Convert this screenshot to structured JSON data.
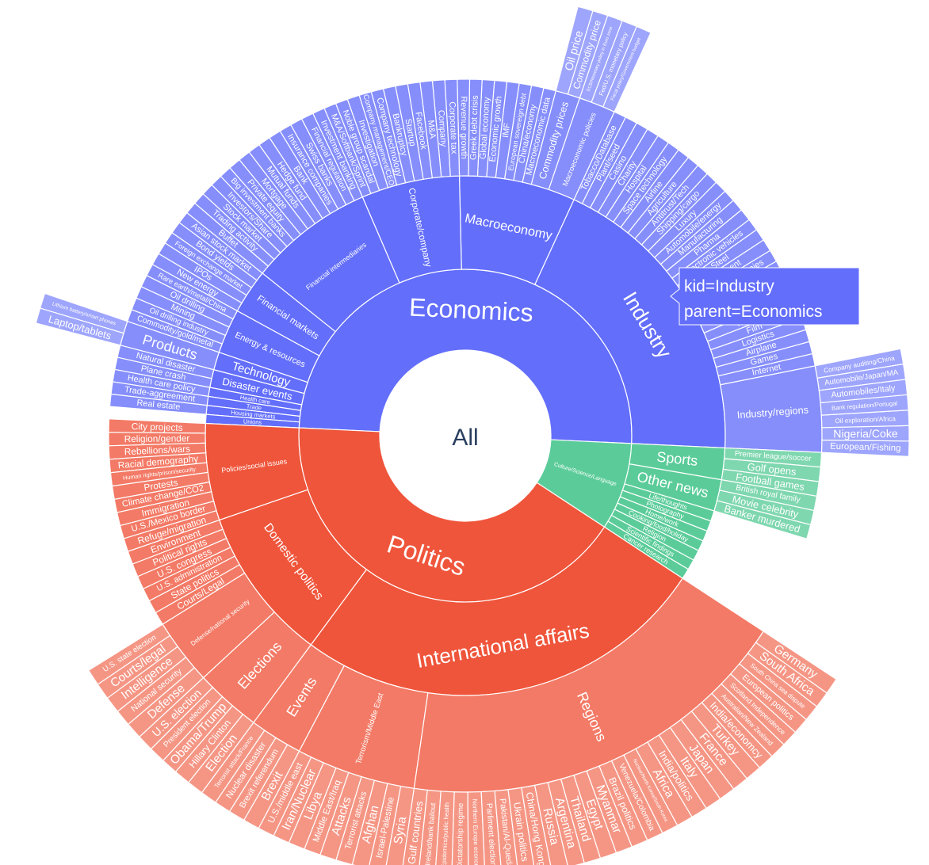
{
  "colors": {
    "Economics": "#636efa",
    "Politics": "#ef553b",
    "Culture": "#5bcc99",
    "center": "#ffffff",
    "center_text": "#2a3f5f"
  },
  "tooltip": {
    "line1": "kid=Industry",
    "line2": "parent=Economics"
  },
  "chart_data": {
    "type": "sunburst",
    "root": {
      "name": "All",
      "children": [
        {
          "name": "Economics",
          "children": [
            {
              "name": "Industry",
              "children": [
                {
                  "name": "Industry/regions",
                  "children": [
                    {
                      "name": "European/Fishing"
                    },
                    {
                      "name": "Nigeria/Coke"
                    },
                    {
                      "name": "Oil exploration/Africa"
                    },
                    {
                      "name": "Bank regulation/Portugal"
                    },
                    {
                      "name": "Automobiles/Italy"
                    },
                    {
                      "name": "Automobile/Japan/MA"
                    },
                    {
                      "name": "Company auditing/China"
                    }
                  ]
                },
                {
                  "name": "Internet"
                },
                {
                  "name": "Games"
                },
                {
                  "name": "Airplane"
                },
                {
                  "name": "Logistics"
                },
                {
                  "name": "Film"
                },
                {
                  "name": "Tobacco"
                },
                {
                  "name": "News/publishing"
                },
                {
                  "name": "Retail"
                },
                {
                  "name": "Food"
                },
                {
                  "name": "Internet companies"
                },
                {
                  "name": "Payment"
                },
                {
                  "name": "Steel"
                },
                {
                  "name": "Electronic vehicles"
                },
                {
                  "name": "Pharma"
                },
                {
                  "name": "Manufacturing"
                },
                {
                  "name": "Automobile/energy"
                },
                {
                  "name": "Luxury"
                },
                {
                  "name": "Shipping/cargo"
                },
                {
                  "name": "Antitrust/Tech"
                },
                {
                  "name": "Agriculture"
                },
                {
                  "name": "Airline"
                },
                {
                  "name": "Space technology"
                },
                {
                  "name": "Hospital"
                },
                {
                  "name": "Charity"
                },
                {
                  "name": "Casino"
                },
                {
                  "name": "Plant/seed"
                },
                {
                  "name": "Tobacco/Database"
                }
              ]
            },
            {
              "name": "Macroeconomy",
              "children": [
                {
                  "name": "Macroeconomic policies",
                  "children": [
                    {
                      "name": "Fiscal policy/Government budget"
                    },
                    {
                      "name": "Fed/U.S. monetary policy"
                    },
                    {
                      "name": "ECB/Monetary policy in Euro zone"
                    }
                  ]
                },
                {
                  "name": "Commodity prices",
                  "children": [
                    {
                      "name": "Commodity price"
                    },
                    {
                      "name": "Oil price"
                    }
                  ]
                },
                {
                  "name": "Macroeconomic data"
                },
                {
                  "name": "China/economy"
                },
                {
                  "name": "European sovereign debt"
                },
                {
                  "name": "IMF"
                },
                {
                  "name": "Economic growth"
                },
                {
                  "name": "Global economy"
                },
                {
                  "name": "Greek debt crisis"
                },
                {
                  "name": "Revenue growth"
                }
              ]
            },
            {
              "name": "Corporate/company",
              "children": [
                {
                  "name": "Corporate tax"
                },
                {
                  "name": "Company"
                },
                {
                  "name": "M&A"
                },
                {
                  "name": "Facebook"
                },
                {
                  "name": "Startup"
                },
                {
                  "name": "Bankruptcy"
                },
                {
                  "name": "Company technology"
                },
                {
                  "name": "Company management/CEO"
                },
                {
                  "name": "Investigation"
                },
                {
                  "name": "Noble group scandal"
                },
                {
                  "name": "M&A/Softbank/Sprint"
                }
              ]
            },
            {
              "name": "Financial intermediaries",
              "children": [
                {
                  "name": "Investment banking"
                },
                {
                  "name": "Financial regulation"
                },
                {
                  "name": "Swiss banks"
                },
                {
                  "name": "Insurance companies"
                },
                {
                  "name": "Bank"
                },
                {
                  "name": "Hedge fund"
                },
                {
                  "name": "Mutual funds"
                },
                {
                  "name": "Mortgage"
                },
                {
                  "name": "Private equity"
                },
                {
                  "name": "Big investment banks"
                },
                {
                  "name": "Investors/Share"
                },
                {
                  "name": "Stock market"
                },
                {
                  "name": "Trading activity"
                },
                {
                  "name": "Buffet"
                }
              ]
            },
            {
              "name": "Financial markets",
              "children": [
                {
                  "name": "Asian stock market"
                },
                {
                  "name": "Bond yields"
                },
                {
                  "name": "Foreign exchange market"
                },
                {
                  "name": "IPOs"
                },
                {
                  "name": "New energy"
                }
              ]
            },
            {
              "name": "Energy & resources",
              "children": [
                {
                  "name": "Rare earth/metal/China"
                },
                {
                  "name": "Oil drilling"
                },
                {
                  "name": "Mining"
                },
                {
                  "name": "Oil drilling industry"
                },
                {
                  "name": "Commodity/gold/metal"
                }
              ]
            },
            {
              "name": "Technology",
              "children": [
                {
                  "name": "Products",
                  "children": [
                    {
                      "name": "Lithium battery/smart phones"
                    },
                    {
                      "name": "Laptop/tablets"
                    }
                  ]
                }
              ]
            },
            {
              "name": "Disaster events",
              "children": [
                {
                  "name": "Natural disaster"
                },
                {
                  "name": "Plane crash"
                }
              ]
            },
            {
              "name": "Health care",
              "children": [
                {
                  "name": "Health care policy"
                }
              ]
            },
            {
              "name": "Trade",
              "children": [
                {
                  "name": "Trade-aggreement"
                }
              ]
            },
            {
              "name": "Housing markets",
              "children": [
                {
                  "name": "Real estate"
                }
              ]
            },
            {
              "name": "Unions"
            }
          ]
        },
        {
          "name": "Culture/Science/Language",
          "children": [
            {
              "name": "Cancer research"
            },
            {
              "name": "Scientific findings"
            },
            {
              "name": "Religion"
            },
            {
              "name": "Cooking/food/holiday"
            },
            {
              "name": "Home/work"
            },
            {
              "name": "Photography"
            },
            {
              "name": "Life/thoughts"
            },
            {
              "name": "Other news",
              "children": [
                {
                  "name": "Banker murdered"
                },
                {
                  "name": "Movie celebrity"
                },
                {
                  "name": "British royal family"
                }
              ]
            },
            {
              "name": "Sports",
              "children": [
                {
                  "name": "Football games"
                },
                {
                  "name": "Golf opens"
                },
                {
                  "name": "Premier league/soccer"
                }
              ]
            }
          ]
        },
        {
          "name": "Politics",
          "children": [
            {
              "name": "Policies/social issues",
              "children": [
                {
                  "name": "City projects"
                },
                {
                  "name": "Religion/gender"
                },
                {
                  "name": "Rebellions/wars"
                },
                {
                  "name": "Racial demography"
                },
                {
                  "name": "Human rights/prison/security"
                },
                {
                  "name": "Protests"
                },
                {
                  "name": "Climate change/CO2"
                },
                {
                  "name": "Immigration"
                },
                {
                  "name": "U.S./Mexico border"
                },
                {
                  "name": "Refuge/migration"
                }
              ]
            },
            {
              "name": "Domestic politics",
              "children": [
                {
                  "name": "Environment"
                },
                {
                  "name": "Political rights"
                },
                {
                  "name": "U.S. congress"
                },
                {
                  "name": "U.S. administration"
                },
                {
                  "name": "State politics"
                },
                {
                  "name": "Courts/Legal"
                },
                {
                  "name": "Defense/national security",
                  "children": [
                    {
                      "name": "U.S. state election"
                    },
                    {
                      "name": "Courts/legal"
                    },
                    {
                      "name": "Intelligence"
                    },
                    {
                      "name": "National security"
                    },
                    {
                      "name": "Defense"
                    }
                  ]
                },
                {
                  "name": "Elections",
                  "children": [
                    {
                      "name": "U.S. election"
                    },
                    {
                      "name": "President election"
                    },
                    {
                      "name": "Obama/Trump"
                    },
                    {
                      "name": "Hillary Clinton"
                    },
                    {
                      "name": "Election"
                    }
                  ]
                }
              ]
            },
            {
              "name": "International affairs",
              "children": [
                {
                  "name": "Events",
                  "children": [
                    {
                      "name": "Terrorist attack/France"
                    },
                    {
                      "name": "Nuclear disaster"
                    },
                    {
                      "name": "Brexit referendum"
                    },
                    {
                      "name": "Brexit"
                    }
                  ]
                },
                {
                  "name": "Terrorism/Middle East",
                  "children": [
                    {
                      "name": "U.S./middle east"
                    },
                    {
                      "name": "Iran/Nuclear"
                    },
                    {
                      "name": "Libya"
                    },
                    {
                      "name": "Middle East/Iraq"
                    },
                    {
                      "name": "Attacks"
                    },
                    {
                      "name": "Terrorist attacks"
                    },
                    {
                      "name": "Afghan"
                    },
                    {
                      "name": "Israel-Palestine"
                    },
                    {
                      "name": "Syria"
                    }
                  ]
                },
                {
                  "name": "Regions",
                  "children": [
                    {
                      "name": "Gulf countries"
                    },
                    {
                      "name": "Ireland/bank bailout"
                    },
                    {
                      "name": "Epidemics/public health"
                    },
                    {
                      "name": "Dictatorship regime"
                    },
                    {
                      "name": "Northern Europe economy"
                    },
                    {
                      "name": "Parliment election"
                    },
                    {
                      "name": "Pakistan/Al-Queda"
                    },
                    {
                      "name": "Ukrain politics"
                    },
                    {
                      "name": "China/Hong Kong"
                    },
                    {
                      "name": "Russia"
                    },
                    {
                      "name": "Argentina"
                    },
                    {
                      "name": "Thailand"
                    },
                    {
                      "name": "Egypt"
                    },
                    {
                      "name": "Myanmar"
                    },
                    {
                      "name": "Brazil politics"
                    },
                    {
                      "name": "Venezuela/Colombia"
                    },
                    {
                      "name": "Nuclear/North Korea/South Korea"
                    },
                    {
                      "name": "Africa"
                    },
                    {
                      "name": "India/politics"
                    },
                    {
                      "name": "Italy"
                    },
                    {
                      "name": "Japan"
                    },
                    {
                      "name": "France"
                    },
                    {
                      "name": "Turkey"
                    },
                    {
                      "name": "India/economcy"
                    },
                    {
                      "name": "Australian/New Zealand"
                    },
                    {
                      "name": "Scotland Independence"
                    },
                    {
                      "name": "European politics"
                    },
                    {
                      "name": "South China sea dispute"
                    },
                    {
                      "name": "South Africa"
                    },
                    {
                      "name": "Germany"
                    }
                  ]
                }
              ]
            }
          ]
        }
      ]
    }
  }
}
